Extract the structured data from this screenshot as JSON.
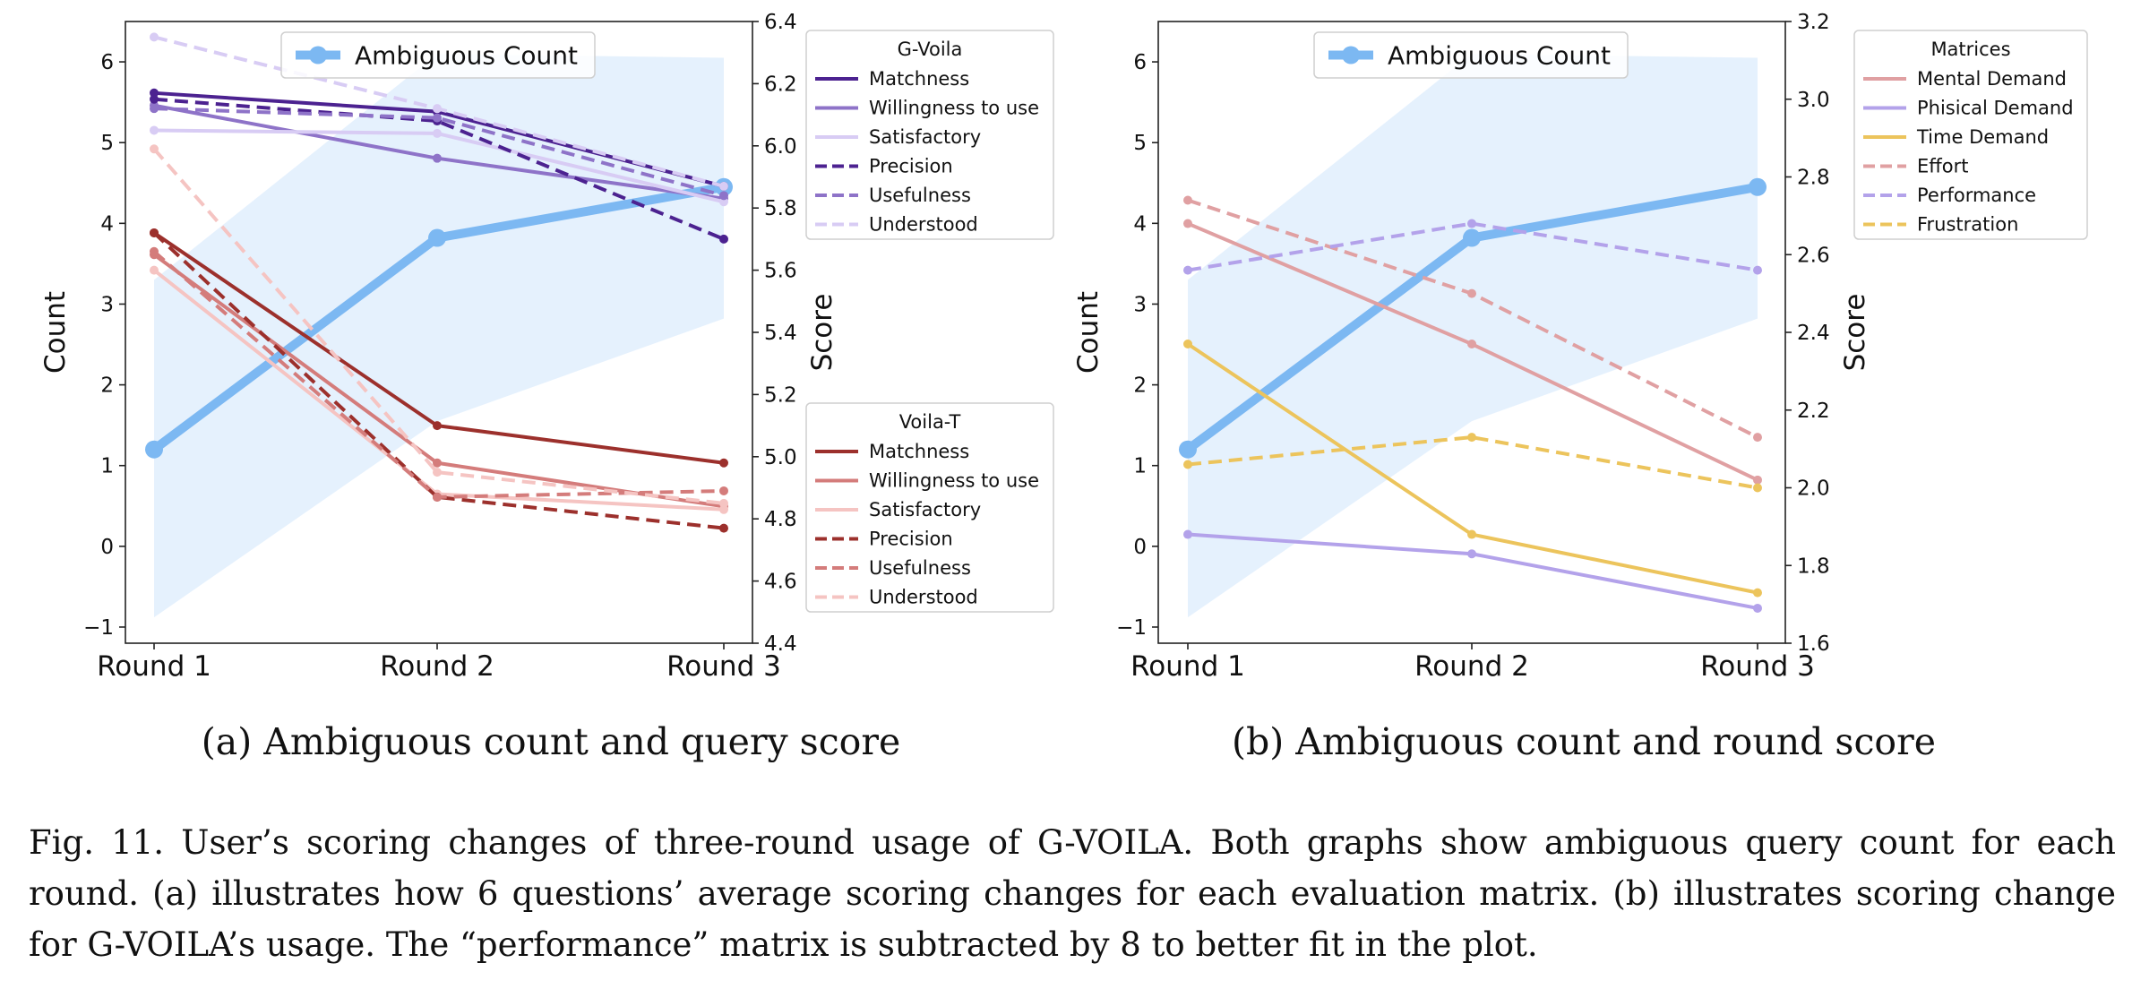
{
  "chart_data": [
    {
      "type": "line",
      "subcaption": "(a) Ambiguous count and query score",
      "categories": [
        "Round 1",
        "Round 2",
        "Round 3"
      ],
      "ylabel": "Count",
      "ylim": [
        -1.2,
        6.5
      ],
      "yticks": [
        -1,
        0,
        1,
        2,
        3,
        4,
        5,
        6
      ],
      "y2label": "Score",
      "y2lim": [
        4.4,
        6.4
      ],
      "y2ticks": [
        4.4,
        4.6,
        4.8,
        5.0,
        5.2,
        5.4,
        5.6,
        5.8,
        6.0,
        6.2,
        6.4
      ],
      "count_series": {
        "name": "Ambiguous Count",
        "color": "#7cb8f2",
        "values": [
          1.2,
          3.82,
          4.45
        ]
      },
      "band": {
        "upper": [
          3.3,
          6.1,
          6.05
        ],
        "lower": [
          -0.88,
          1.55,
          2.82
        ],
        "color": "#dcecfc"
      },
      "legends": [
        {
          "title": "G-Voila",
          "series": [
            {
              "name": "Matchness",
              "color": "#4c2290",
              "dash": "solid",
              "values": [
                6.17,
                6.11,
                5.87
              ]
            },
            {
              "name": "Willingness to use",
              "color": "#8e73c8",
              "dash": "solid",
              "values": [
                6.13,
                5.96,
                5.83
              ]
            },
            {
              "name": "Satisfactory",
              "color": "#d8ccf4",
              "dash": "solid",
              "values": [
                6.05,
                6.04,
                5.82
              ]
            },
            {
              "name": "Precision",
              "color": "#4c2290",
              "dash": "dashed",
              "values": [
                6.15,
                6.08,
                5.7
              ]
            },
            {
              "name": "Usefulness",
              "color": "#8e73c8",
              "dash": "dashed",
              "values": [
                6.12,
                6.09,
                5.84
              ]
            },
            {
              "name": "Understood",
              "color": "#d8ccf4",
              "dash": "dashed",
              "values": [
                6.35,
                6.12,
                5.87
              ]
            }
          ]
        },
        {
          "title": "Voila-T",
          "series": [
            {
              "name": "Matchness",
              "color": "#9c302c",
              "dash": "solid",
              "values": [
                5.72,
                5.1,
                4.98
              ]
            },
            {
              "name": "Willingness to use",
              "color": "#d47c7b",
              "dash": "solid",
              "values": [
                5.65,
                4.98,
                4.84
              ]
            },
            {
              "name": "Satisfactory",
              "color": "#f5c4c2",
              "dash": "solid",
              "values": [
                5.6,
                4.88,
                4.83
              ]
            },
            {
              "name": "Precision",
              "color": "#9c302c",
              "dash": "dashed",
              "values": [
                5.72,
                4.87,
                4.77
              ]
            },
            {
              "name": "Usefulness",
              "color": "#d47c7b",
              "dash": "dashed",
              "values": [
                5.66,
                4.87,
                4.89
              ]
            },
            {
              "name": "Understood",
              "color": "#f5c4c2",
              "dash": "dashed",
              "values": [
                5.99,
                4.95,
                4.85
              ]
            }
          ]
        }
      ]
    },
    {
      "type": "line",
      "subcaption": "(b) Ambiguous count and round score",
      "categories": [
        "Round 1",
        "Round 2",
        "Round 3"
      ],
      "ylabel": "Count",
      "ylim": [
        -1.2,
        6.5
      ],
      "yticks": [
        -1,
        0,
        1,
        2,
        3,
        4,
        5,
        6
      ],
      "y2label": "Score",
      "y2lim": [
        1.6,
        3.2
      ],
      "y2ticks": [
        1.6,
        1.8,
        2.0,
        2.2,
        2.4,
        2.6,
        2.8,
        3.0,
        3.2
      ],
      "count_series": {
        "name": "Ambiguous Count",
        "color": "#7cb8f2",
        "values": [
          1.2,
          3.82,
          4.45
        ]
      },
      "band": {
        "upper": [
          3.3,
          6.1,
          6.05
        ],
        "lower": [
          -0.88,
          1.55,
          2.82
        ],
        "color": "#dcecfc"
      },
      "legends": [
        {
          "title": "Matrices",
          "series": [
            {
              "name": "Mental Demand",
              "color": "#e0a0a2",
              "dash": "solid",
              "values": [
                2.68,
                2.37,
                2.02
              ]
            },
            {
              "name": "Phisical Demand",
              "color": "#b3a2ea",
              "dash": "solid",
              "values": [
                1.88,
                1.83,
                1.69
              ]
            },
            {
              "name": "Time Demand",
              "color": "#ecc45c",
              "dash": "solid",
              "values": [
                2.37,
                1.88,
                1.73
              ]
            },
            {
              "name": "Effort",
              "color": "#e0a0a2",
              "dash": "dashed",
              "values": [
                2.74,
                2.5,
                2.13
              ]
            },
            {
              "name": "Performance",
              "color": "#b3a2ea",
              "dash": "dashed",
              "values": [
                2.56,
                2.68,
                2.56
              ]
            },
            {
              "name": "Frustration",
              "color": "#ecc45c",
              "dash": "dashed",
              "values": [
                2.06,
                2.13,
                2.0
              ]
            }
          ]
        }
      ]
    }
  ],
  "caption": "Fig. 11.  User’s scoring changes of three-round usage of G-VOILA. Both graphs show ambiguous query count for each round. (a) illustrates how 6 questions’ average scoring changes for each evaluation matrix. (b) illustrates scoring change for G-VOILA’s usage. The “performance” matrix is subtracted by 8 to better fit in the plot."
}
